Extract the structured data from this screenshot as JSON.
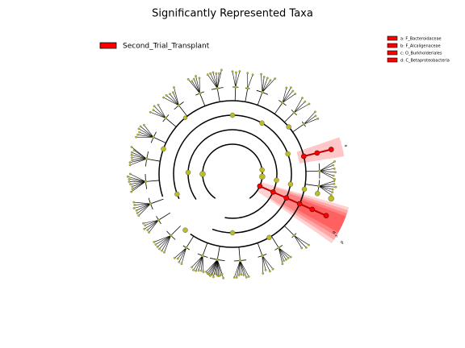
{
  "title": "Significantly Represented Taxa",
  "legend": {
    "label": "Second_Trial_Transplant",
    "color": "#ff0000"
  },
  "clade_legend": [
    "a: F_Bacteroidaceae",
    "b: F_Alcaligenaceae",
    "c: O_Burkholderiales",
    "d: C_Betaproteobacteria"
  ],
  "wedge_labels": [
    "a",
    "b",
    "c",
    "d"
  ]
}
